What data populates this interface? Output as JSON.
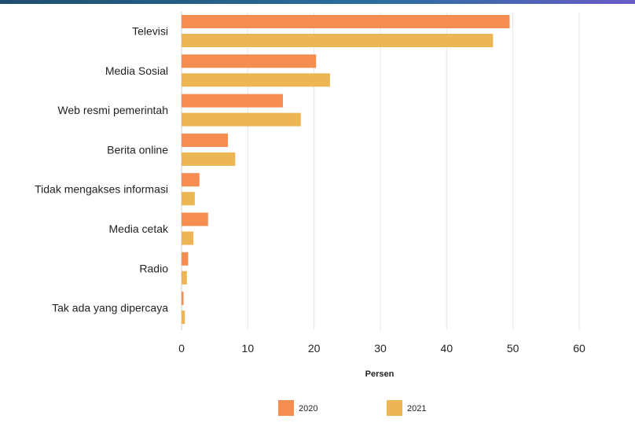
{
  "chart_data": {
    "type": "bar",
    "orientation": "horizontal",
    "categories": [
      "Televisi",
      "Media Sosial",
      "Web resmi pemerintah",
      "Berita online",
      "Tidak mengakses informasi",
      "Media cetak",
      "Radio",
      "Tak ada yang dipercaya"
    ],
    "series": [
      {
        "name": "2020",
        "color": "#f58c50",
        "values": [
          49.5,
          20.3,
          15.3,
          7.0,
          2.7,
          4.0,
          1.0,
          0.3
        ]
      },
      {
        "name": "2021",
        "color": "#ebb653",
        "values": [
          47.0,
          22.4,
          18.0,
          8.1,
          2.0,
          1.8,
          0.8,
          0.5
        ]
      }
    ],
    "xlabel": "Persen",
    "ylabel": "",
    "xlim": [
      0,
      60
    ],
    "xticks": [
      "0",
      "10",
      "20",
      "30",
      "40",
      "50",
      "60"
    ],
    "grid": true,
    "legend_position": "bottom"
  }
}
